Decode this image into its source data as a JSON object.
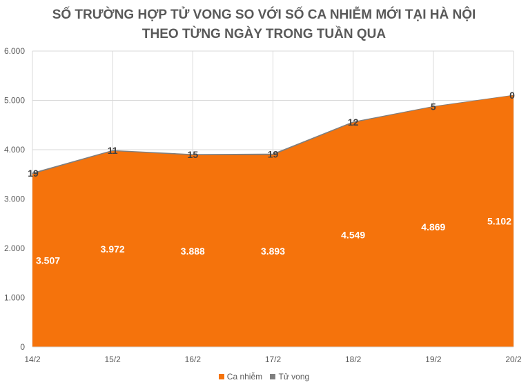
{
  "title_line1": "SỐ TRƯỜNG HỢP TỬ VONG SO VỚI SỐ CA NHIỄM MỚI TẠI HÀ NỘI",
  "title_line2": "THEO TỪNG NGÀY TRONG TUẦN QUA",
  "colors": {
    "ca_nhiem": "#F5730C",
    "tu_vong": "#7F7F7F",
    "grid": "#D9D9D9",
    "text": "#595959"
  },
  "chart_data": {
    "type": "area",
    "title": "SỐ TRƯỜNG HỢP TỬ VONG SO VỚI SỐ CA NHIỄM MỚI TẠI HÀ NỘI THEO TỪNG NGÀY TRONG TUẦN QUA",
    "categories": [
      "14/2",
      "15/2",
      "16/2",
      "17/2",
      "18/2",
      "19/2",
      "20/2"
    ],
    "series": [
      {
        "name": "Ca nhiễm",
        "values": [
          3507,
          3972,
          3888,
          3893,
          4549,
          4869,
          5102
        ],
        "labels": [
          "3.507",
          "3.972",
          "3.888",
          "3.893",
          "4.549",
          "4.869",
          "5.102"
        ]
      },
      {
        "name": "Tử vong",
        "values": [
          19,
          11,
          15,
          19,
          12,
          5,
          0
        ],
        "labels": [
          "19",
          "11",
          "15",
          "19",
          "12",
          "5",
          "0"
        ]
      }
    ],
    "stacked": true,
    "ylim": [
      0,
      6000
    ],
    "yticks": [
      0,
      1000,
      2000,
      3000,
      4000,
      5000,
      6000
    ],
    "ytick_labels": [
      "0",
      "1.000",
      "2.000",
      "3.000",
      "4.000",
      "5.000",
      "6.000"
    ],
    "grid": true,
    "legend": "bottom"
  }
}
